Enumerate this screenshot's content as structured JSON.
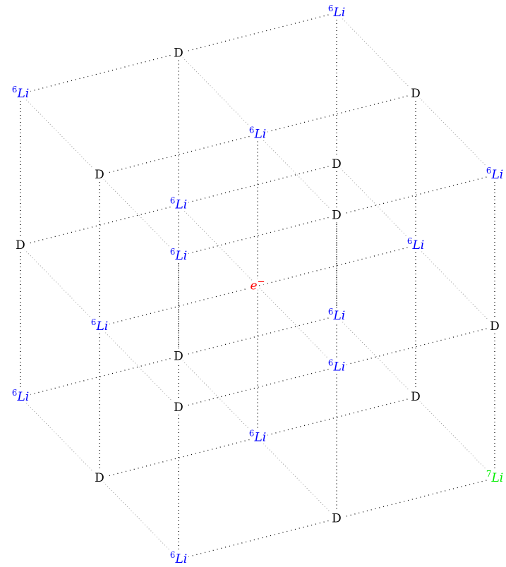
{
  "nodes": [
    {
      "sup": "6",
      "text": "Li",
      "style": "italic",
      "color": "#0000ff"
    },
    {
      "text": "D",
      "style": "normal",
      "color": "#000000"
    },
    {
      "sup": "6",
      "text": "Li",
      "style": "italic",
      "color": "#0000ff"
    },
    {
      "text": "D",
      "style": "normal",
      "color": "#000000"
    },
    {
      "sup": "6",
      "text": "Li",
      "style": "italic",
      "color": "#0000ff"
    },
    {
      "text": "D",
      "style": "normal",
      "color": "#000000"
    },
    {
      "sup": "6",
      "text": "Li",
      "style": "italic",
      "color": "#0000ff"
    },
    {
      "text": "D",
      "style": "normal",
      "color": "#000000"
    },
    {
      "sup": "6",
      "text": "Li",
      "style": "italic",
      "color": "#0000ff"
    },
    {
      "text": "D",
      "style": "normal",
      "color": "#000000"
    },
    {
      "sup": "6",
      "text": "Li",
      "style": "italic",
      "color": "#0000ff"
    },
    {
      "text": "D",
      "style": "normal",
      "color": "#000000"
    },
    {
      "sup": "6",
      "text": "Li",
      "style": "italic",
      "color": "#0000ff"
    },
    {
      "text": "e",
      "after": "−",
      "style": "italic",
      "color": "#ff0000"
    },
    {
      "sup": "6",
      "text": "Li",
      "style": "italic",
      "color": "#0000ff"
    },
    {
      "text": "D",
      "style": "normal",
      "color": "#000000"
    },
    {
      "sup": "6",
      "text": "Li",
      "style": "italic",
      "color": "#0000ff"
    },
    {
      "text": "D",
      "style": "normal",
      "color": "#000000"
    },
    {
      "sup": "6",
      "text": "Li",
      "style": "italic",
      "color": "#0000ff"
    },
    {
      "text": "D",
      "style": "normal",
      "color": "#000000"
    },
    {
      "sup": "6",
      "text": "Li",
      "style": "italic",
      "color": "#0000ff"
    },
    {
      "text": "D",
      "style": "normal",
      "color": "#000000"
    },
    {
      "sup": "6",
      "text": "Li",
      "style": "italic",
      "color": "#0000ff"
    },
    {
      "text": "D",
      "style": "normal",
      "color": "#000000"
    },
    {
      "sup": "7",
      "text": "Li",
      "style": "italic",
      "color": "#00ee00"
    },
    {
      "text": "D",
      "style": "normal",
      "color": "#000000"
    },
    {
      "sup": "6",
      "text": "Li",
      "style": "italic",
      "color": "#0000ff"
    }
  ]
}
